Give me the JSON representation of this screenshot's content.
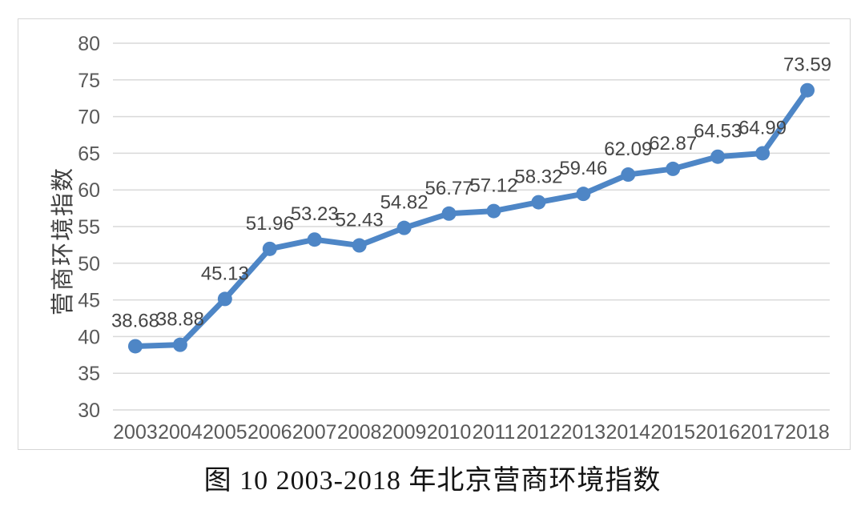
{
  "caption": "图 10 2003-2018 年北京营商环境指数",
  "chart_data": {
    "type": "line",
    "title": "图 10 2003-2018 年北京营商环境指数",
    "ylabel": "营商环境指数",
    "xlabel": "",
    "categories": [
      "2003",
      "2004",
      "2005",
      "2006",
      "2007",
      "2008",
      "2009",
      "2010",
      "2011",
      "2012",
      "2013",
      "2014",
      "2015",
      "2016",
      "2017",
      "2018"
    ],
    "values": [
      38.68,
      38.88,
      45.13,
      51.96,
      53.23,
      52.43,
      54.82,
      56.77,
      57.12,
      58.32,
      59.46,
      62.09,
      62.87,
      64.53,
      64.99,
      73.59
    ],
    "series_name": "营商环境指数",
    "ylim": [
      30,
      80
    ],
    "yticks": [
      30,
      35,
      40,
      45,
      50,
      55,
      60,
      65,
      70,
      75,
      80
    ],
    "grid": true,
    "legend_position": "none",
    "marker": "circle",
    "colors": {
      "line": "#4E86C6",
      "grid": "#D9D9D9",
      "tick": "#595959",
      "label": "#454545",
      "frame": "#D6D6D6",
      "caption": "#141414"
    }
  }
}
